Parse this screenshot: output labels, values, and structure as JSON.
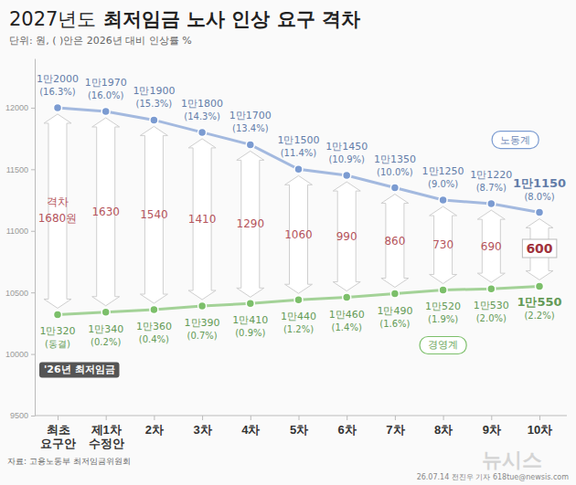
{
  "chart_data": {
    "type": "line",
    "title": "2027년도 최저임금 노사 인상 요구 격차",
    "subtitle": "단위: 원, ( )안은 2026년 대비 인상률 %",
    "categories": [
      "최초 요구안",
      "제1차 수정안",
      "2차",
      "3차",
      "4차",
      "5차",
      "6차",
      "7차",
      "8차",
      "9차",
      "10차"
    ],
    "series": [
      {
        "name": "노동계",
        "color": "#7b9bd1",
        "marker": "circle",
        "values": [
          12000,
          11970,
          11900,
          11800,
          11700,
          11500,
          11450,
          11350,
          11250,
          11220,
          11150
        ],
        "value_labels": [
          "1만2000",
          "1만1970",
          "1만1900",
          "1만1800",
          "1만1700",
          "1만1500",
          "1만1450",
          "1만1350",
          "1만1250",
          "1만1220",
          "1만1150"
        ],
        "rate_labels": [
          "(16.3%)",
          "(16.0%)",
          "(15.3%)",
          "(14.3%)",
          "(13.4%)",
          "(11.4%)",
          "(10.9%)",
          "(10.0%)",
          "(9.0%)",
          "(8.7%)",
          "(8.0%)"
        ]
      },
      {
        "name": "경영계",
        "color": "#7cbf6a",
        "marker": "circle",
        "values": [
          10320,
          10340,
          10360,
          10390,
          10410,
          10440,
          10460,
          10490,
          10520,
          10530,
          10550
        ],
        "value_labels": [
          "1만320",
          "1만340",
          "1만360",
          "1만390",
          "1만410",
          "1만440",
          "1만460",
          "1만490",
          "1만520",
          "1만530",
          "1만550"
        ],
        "rate_labels": [
          "(동결)",
          "(0.2%)",
          "(0.4%)",
          "(0.7%)",
          "(0.9%)",
          "(1.2%)",
          "(1.4%)",
          "(1.6%)",
          "(1.9%)",
          "(2.0%)",
          "(2.2%)"
        ]
      }
    ],
    "gaps": {
      "label": "격차",
      "values": [
        1680,
        1630,
        1540,
        1410,
        1290,
        1060,
        990,
        860,
        730,
        690,
        600
      ],
      "value_labels": [
        "1680원",
        "1630",
        "1540",
        "1410",
        "1290",
        "1060",
        "990",
        "860",
        "730",
        "690",
        "600"
      ]
    },
    "annotation": "'26년 최저임금",
    "source": "자료: 고용노동부 최저임금위원회",
    "credit": "26.07.14 전진우 기자 618tue@newsis.com",
    "watermark": "뉴시스",
    "ylim": [
      9500,
      12400
    ],
    "yticks": [
      9500,
      10000,
      10500,
      11000,
      11500,
      12000
    ],
    "data_labels": true
  }
}
